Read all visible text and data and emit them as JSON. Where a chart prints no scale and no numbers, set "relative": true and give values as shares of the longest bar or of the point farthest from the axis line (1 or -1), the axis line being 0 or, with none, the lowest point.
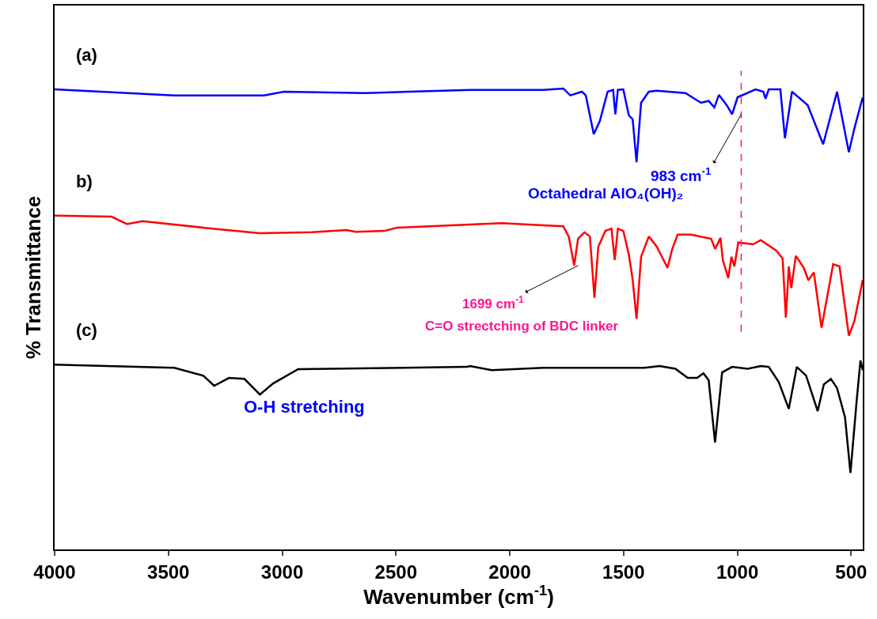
{
  "chart_data": {
    "type": "line",
    "relative": true,
    "xlabel": "Wavenumber (cm$^{-1}$)",
    "ylabel": "% Transmittance",
    "xlim": [
      4000,
      449
    ],
    "xticks": [
      4000,
      3500,
      3000,
      2500,
      2000,
      1500,
      1000,
      500
    ],
    "grid": false,
    "legend": false,
    "line_style": "solid",
    "marker": "none",
    "series": [
      {
        "name": "(a)",
        "color": "#0000ff",
        "x": [
          4000,
          3474,
          3081,
          2992,
          2636,
          2175,
          1853,
          1765,
          1734,
          1683,
          1666,
          1631,
          1604,
          1570,
          1546,
          1536,
          1525,
          1501,
          1477,
          1460,
          1443,
          1423,
          1389,
          1354,
          1228,
          1160,
          1126,
          1101,
          1081,
          1047,
          1023,
          999,
          920,
          886,
          876,
          862,
          811,
          791,
          760,
          691,
          623,
          562,
          510,
          486,
          449
        ],
        "values": [
          0.998,
          0.985,
          0.985,
          0.993,
          0.99,
          0.997,
          0.997,
          1.0,
          0.985,
          0.993,
          0.985,
          0.901,
          0.93,
          0.993,
          0.997,
          0.944,
          0.997,
          0.998,
          0.942,
          0.933,
          0.84,
          0.969,
          0.993,
          0.995,
          0.99,
          0.969,
          0.973,
          0.959,
          0.986,
          0.964,
          0.944,
          0.981,
          0.998,
          0.993,
          0.978,
          0.998,
          0.998,
          0.892,
          0.993,
          0.964,
          0.879,
          0.993,
          0.862,
          0.913,
          0.981
        ]
      },
      {
        "name": "b)",
        "color": "#ff0000",
        "x": [
          4000,
          3750,
          3682,
          3614,
          3306,
          3098,
          2872,
          2718,
          2677,
          2551,
          2496,
          2035,
          1853,
          1765,
          1741,
          1717,
          1700,
          1672,
          1648,
          1628,
          1611,
          1580,
          1553,
          1539,
          1525,
          1501,
          1477,
          1460,
          1443,
          1423,
          1389,
          1354,
          1307,
          1286,
          1262,
          1204,
          1115,
          1098,
          1074,
          1064,
          1040,
          1026,
          1013,
          996,
          931,
          897,
          828,
          801,
          787,
          774,
          763,
          743,
          708,
          688,
          664,
          630,
          579,
          551,
          510,
          486,
          449
        ],
        "values": [
          0.724,
          0.722,
          0.706,
          0.712,
          0.696,
          0.686,
          0.688,
          0.693,
          0.689,
          0.691,
          0.698,
          0.708,
          0.703,
          0.701,
          0.679,
          0.616,
          0.674,
          0.688,
          0.679,
          0.546,
          0.657,
          0.691,
          0.696,
          0.628,
          0.696,
          0.691,
          0.64,
          0.585,
          0.5,
          0.635,
          0.679,
          0.657,
          0.611,
          0.652,
          0.683,
          0.683,
          0.674,
          0.652,
          0.676,
          0.628,
          0.589,
          0.635,
          0.614,
          0.666,
          0.662,
          0.671,
          0.648,
          0.631,
          0.503,
          0.614,
          0.567,
          0.637,
          0.611,
          0.584,
          0.601,
          0.481,
          0.619,
          0.614,
          0.464,
          0.495,
          0.585
        ]
      },
      {
        "name": "(c)",
        "color": "#000000",
        "x": [
          4000,
          3474,
          3347,
          3299,
          3234,
          3166,
          3098,
          3040,
          2930,
          2188,
          2175,
          2079,
          1853,
          1409,
          1341,
          1272,
          1218,
          1177,
          1149,
          1126,
          1098,
          1067,
          1023,
          955,
          897,
          862,
          818,
          774,
          739,
          698,
          647,
          620,
          589,
          562,
          527,
          503,
          476,
          459,
          449
        ],
        "values": [
          0.401,
          0.394,
          0.377,
          0.355,
          0.372,
          0.37,
          0.336,
          0.36,
          0.391,
          0.396,
          0.398,
          0.389,
          0.394,
          0.394,
          0.398,
          0.392,
          0.372,
          0.372,
          0.382,
          0.367,
          0.232,
          0.384,
          0.396,
          0.392,
          0.398,
          0.396,
          0.363,
          0.305,
          0.396,
          0.377,
          0.3,
          0.358,
          0.37,
          0.35,
          0.287,
          0.166,
          0.321,
          0.41,
          0.389
        ]
      }
    ],
    "ref_lines": [
      {
        "axis": "x",
        "value": 983,
        "color": "#ff1493",
        "line_style": "dashed"
      }
    ],
    "annotations": [
      {
        "text": "983 cm$^{-1}$",
        "x": 983,
        "y": 0.944
      },
      "Octahedral AlO₄(OH)₂",
      {
        "text": "1699 cm$^{-1}$",
        "x": 1699,
        "y": 0.616
      },
      "C=O strectching of BDC linker",
      "O-H stretching"
    ]
  }
}
